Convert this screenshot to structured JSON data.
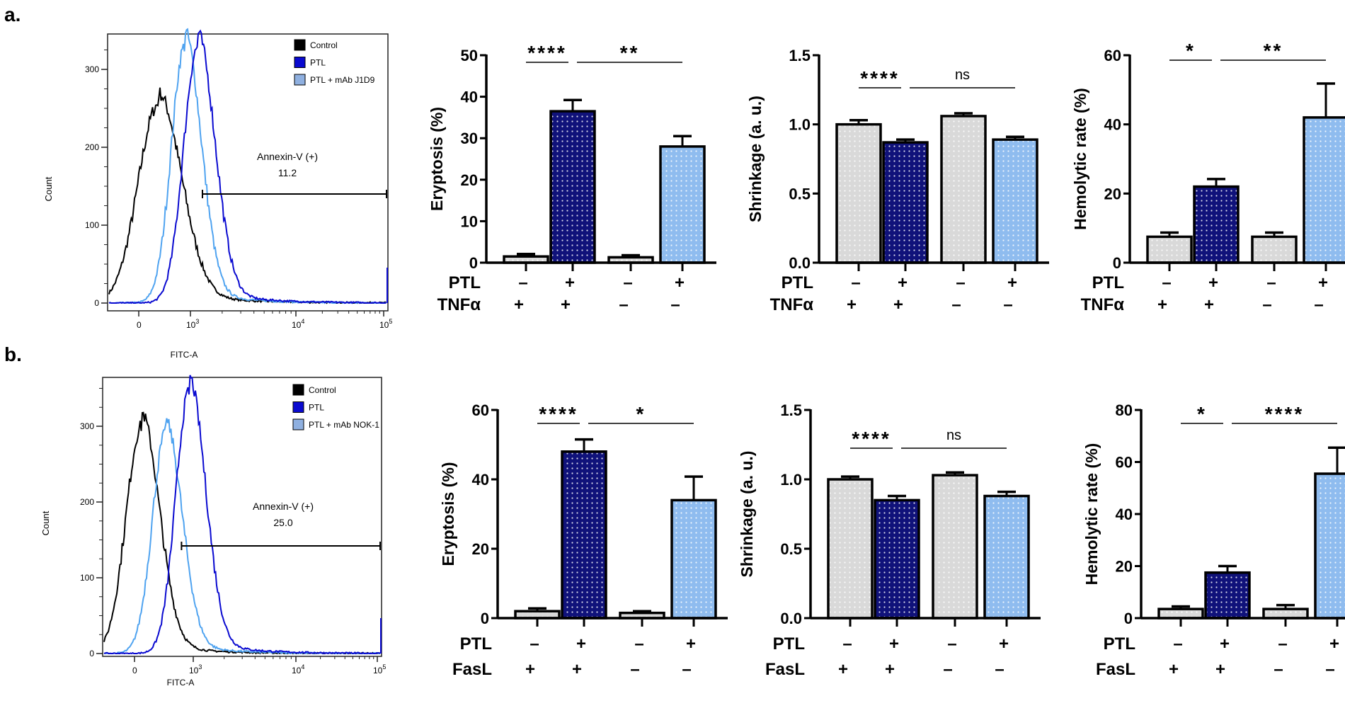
{
  "panel_labels": [
    "a.",
    "b."
  ],
  "colors": {
    "control": "#000000",
    "ptl": "#0a0ad0",
    "mab": "#4fa3f0",
    "bar_gray": "#d9d9d9",
    "bar_navy": "#10127a",
    "bar_light": "#8fbcef"
  },
  "chart_data": [
    {
      "type": "line",
      "panel": "a",
      "xlabel": "FITC-A",
      "ylabel": "Count",
      "x_ticks": [
        {
          "base": "0",
          "exp": ""
        },
        {
          "base": "10",
          "exp": "3"
        },
        {
          "base": "10",
          "exp": "4"
        },
        {
          "base": "10",
          "exp": "5"
        }
      ],
      "y_ticks": [
        0,
        100,
        200,
        300
      ],
      "legend": [
        {
          "name": "Control",
          "color": "#000000"
        },
        {
          "name": "PTL",
          "color": "#0a0ad0"
        },
        {
          "name": "PTL + mAb J1D9",
          "color": "#8fb0e0"
        }
      ],
      "gate": {
        "label": "Annexin-V (+)",
        "value": "11.2",
        "from": 1300,
        "to": 100000
      },
      "series": [
        {
          "name": "Control",
          "color": "#000000",
          "peak_count": 255,
          "peak_fitc": 380
        },
        {
          "name": "PTL + mAb J1D9",
          "color": "#4fa3f0",
          "peak_count": 330,
          "peak_fitc": 890
        },
        {
          "name": "PTL",
          "color": "#0a0ad0",
          "peak_count": 328,
          "peak_fitc": 1170
        }
      ]
    },
    {
      "type": "bar",
      "panel": "a",
      "ylabel": "Eryptosis (%)",
      "ylim": [
        0,
        50
      ],
      "y_ticks": [
        "0",
        "10",
        "20",
        "30",
        "40",
        "50"
      ],
      "conditions": [
        {
          "label": "PTL",
          "signs": [
            "–",
            "+",
            "–",
            "+"
          ]
        },
        {
          "label": "TNFα",
          "signs": [
            "+",
            "+",
            "–",
            "–"
          ]
        }
      ],
      "values": [
        1.5,
        36.5,
        1.3,
        28.0
      ],
      "errors": [
        0.6,
        2.7,
        0.5,
        2.5
      ],
      "colors": [
        "#d9d9d9",
        "#10127a",
        "#d9d9d9",
        "#8fbcef"
      ],
      "significance": [
        {
          "from": 0,
          "to": 1,
          "label": "****"
        },
        {
          "from": 1,
          "to": 3,
          "label": "**"
        }
      ]
    },
    {
      "type": "bar",
      "panel": "a",
      "ylabel": "Shrinkage  (a. u.)",
      "ylim": [
        0,
        1.5
      ],
      "y_ticks": [
        "0.0",
        "0.5",
        "1.0",
        "1.5"
      ],
      "conditions": [
        {
          "label": "PTL",
          "signs": [
            "–",
            "+",
            "–",
            "+"
          ]
        },
        {
          "label": "TNFα",
          "signs": [
            "+",
            "+",
            "–",
            "–"
          ]
        }
      ],
      "values": [
        1.0,
        0.87,
        1.06,
        0.89
      ],
      "errors": [
        0.03,
        0.02,
        0.02,
        0.02
      ],
      "colors": [
        "#d9d9d9",
        "#10127a",
        "#d9d9d9",
        "#8fbcef"
      ],
      "significance": [
        {
          "from": 0,
          "to": 1,
          "label": "****"
        },
        {
          "from": 1,
          "to": 3,
          "label": "ns"
        }
      ]
    },
    {
      "type": "bar",
      "panel": "a",
      "ylabel": "Hemolytic rate (%)",
      "ylim": [
        0,
        60
      ],
      "y_ticks": [
        "0",
        "20",
        "40",
        "60"
      ],
      "conditions": [
        {
          "label": "PTL",
          "signs": [
            "–",
            "+",
            "–",
            "+"
          ]
        },
        {
          "label": "TNFα",
          "signs": [
            "+",
            "+",
            "–",
            "–"
          ]
        }
      ],
      "values": [
        7.5,
        22.0,
        7.5,
        42.0
      ],
      "errors": [
        1.2,
        2.2,
        1.2,
        9.8
      ],
      "colors": [
        "#d9d9d9",
        "#10127a",
        "#d9d9d9",
        "#8fbcef"
      ],
      "significance": [
        {
          "from": 0,
          "to": 1,
          "label": "*"
        },
        {
          "from": 1,
          "to": 3,
          "label": "**"
        }
      ]
    },
    {
      "type": "line",
      "panel": "b",
      "xlabel": "FITC-A",
      "ylabel": "Count",
      "x_ticks": [
        {
          "base": "0",
          "exp": ""
        },
        {
          "base": "10",
          "exp": "3"
        },
        {
          "base": "10",
          "exp": "4"
        },
        {
          "base": "10",
          "exp": "5"
        }
      ],
      "y_ticks": [
        0,
        100,
        200,
        300
      ],
      "legend": [
        {
          "name": "Control",
          "color": "#000000"
        },
        {
          "name": "PTL",
          "color": "#0a0ad0"
        },
        {
          "name": "PTL + mAb NOK-1",
          "color": "#8fb0e0"
        }
      ],
      "gate": {
        "label": "Annexin-V (+)",
        "value": "25.0",
        "from": 800,
        "to": 100000
      },
      "series": [
        {
          "name": "Control",
          "color": "#000000",
          "peak_count": 300,
          "peak_fitc": 120
        },
        {
          "name": "PTL + mAb NOK-1",
          "color": "#4fa3f0",
          "peak_count": 290,
          "peak_fitc": 530
        },
        {
          "name": "PTL",
          "color": "#0a0ad0",
          "peak_count": 345,
          "peak_fitc": 930
        }
      ]
    },
    {
      "type": "bar",
      "panel": "b",
      "ylabel": "Eryptosis (%)",
      "ylim": [
        0,
        60
      ],
      "y_ticks": [
        "0",
        "20",
        "40",
        "60"
      ],
      "conditions": [
        {
          "label": "PTL",
          "signs": [
            "–",
            "+",
            "–",
            "+"
          ]
        },
        {
          "label": "FasL",
          "signs": [
            "+",
            "+",
            "–",
            "–"
          ]
        }
      ],
      "values": [
        2.0,
        48.0,
        1.5,
        34.0
      ],
      "errors": [
        0.8,
        3.5,
        0.5,
        6.8
      ],
      "colors": [
        "#d9d9d9",
        "#10127a",
        "#d9d9d9",
        "#8fbcef"
      ],
      "significance": [
        {
          "from": 0,
          "to": 1,
          "label": "****"
        },
        {
          "from": 1,
          "to": 3,
          "label": "*"
        }
      ]
    },
    {
      "type": "bar",
      "panel": "b",
      "ylabel": "Shrinkage  (a. u.)",
      "ylim": [
        0,
        1.5
      ],
      "y_ticks": [
        "0.0",
        "0.5",
        "1.0",
        "1.5"
      ],
      "conditions": [
        {
          "label": "PTL",
          "signs": [
            "–",
            "+",
            "–",
            "+"
          ]
        },
        {
          "label": "FasL",
          "signs": [
            "+",
            "+",
            "–",
            "–"
          ]
        }
      ],
      "values": [
        1.0,
        0.85,
        1.03,
        0.88
      ],
      "errors": [
        0.02,
        0.03,
        0.02,
        0.03
      ],
      "colors": [
        "#d9d9d9",
        "#10127a",
        "#d9d9d9",
        "#8fbcef"
      ],
      "significance": [
        {
          "from": 0,
          "to": 1,
          "label": "****"
        },
        {
          "from": 1,
          "to": 3,
          "label": "ns"
        }
      ]
    },
    {
      "type": "bar",
      "panel": "b",
      "ylabel": "Hemolytic rate (%)",
      "ylim": [
        0,
        80
      ],
      "y_ticks": [
        "0",
        "20",
        "40",
        "60",
        "80"
      ],
      "conditions": [
        {
          "label": "PTL",
          "signs": [
            "–",
            "+",
            "–",
            "+"
          ]
        },
        {
          "label": "FasL",
          "signs": [
            "+",
            "+",
            "–",
            "–"
          ]
        }
      ],
      "values": [
        3.5,
        17.5,
        3.5,
        55.5
      ],
      "errors": [
        1.0,
        2.5,
        1.5,
        10.0
      ],
      "colors": [
        "#d9d9d9",
        "#10127a",
        "#d9d9d9",
        "#8fbcef"
      ],
      "significance": [
        {
          "from": 0,
          "to": 1,
          "label": "*"
        },
        {
          "from": 1,
          "to": 3,
          "label": "****"
        }
      ]
    }
  ]
}
